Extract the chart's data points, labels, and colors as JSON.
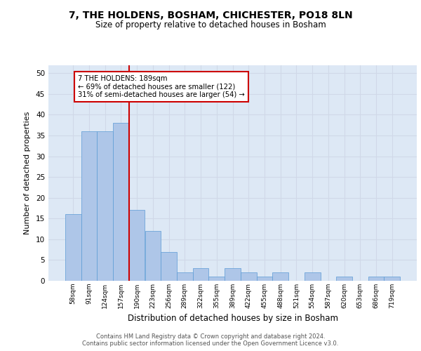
{
  "title": "7, THE HOLDENS, BOSHAM, CHICHESTER, PO18 8LN",
  "subtitle": "Size of property relative to detached houses in Bosham",
  "xlabel": "Distribution of detached houses by size in Bosham",
  "ylabel": "Number of detached properties",
  "categories": [
    "58sqm",
    "91sqm",
    "124sqm",
    "157sqm",
    "190sqm",
    "223sqm",
    "256sqm",
    "289sqm",
    "322sqm",
    "355sqm",
    "389sqm",
    "422sqm",
    "455sqm",
    "488sqm",
    "521sqm",
    "554sqm",
    "587sqm",
    "620sqm",
    "653sqm",
    "686sqm",
    "719sqm"
  ],
  "values": [
    16,
    36,
    36,
    38,
    17,
    12,
    7,
    2,
    3,
    1,
    3,
    2,
    1,
    2,
    0,
    2,
    0,
    1,
    0,
    1,
    1
  ],
  "bar_color": "#aec6e8",
  "bar_edge_color": "#5b9bd5",
  "grid_color": "#d0d8e8",
  "background_color": "#dde8f5",
  "vline_color": "#cc0000",
  "annotation_text": "7 THE HOLDENS: 189sqm\n← 69% of detached houses are smaller (122)\n31% of semi-detached houses are larger (54) →",
  "annotation_box_color": "#cc0000",
  "ylim": [
    0,
    52
  ],
  "yticks": [
    0,
    5,
    10,
    15,
    20,
    25,
    30,
    35,
    40,
    45,
    50
  ],
  "footer": "Contains HM Land Registry data © Crown copyright and database right 2024.\nContains public sector information licensed under the Open Government Licence v3.0."
}
